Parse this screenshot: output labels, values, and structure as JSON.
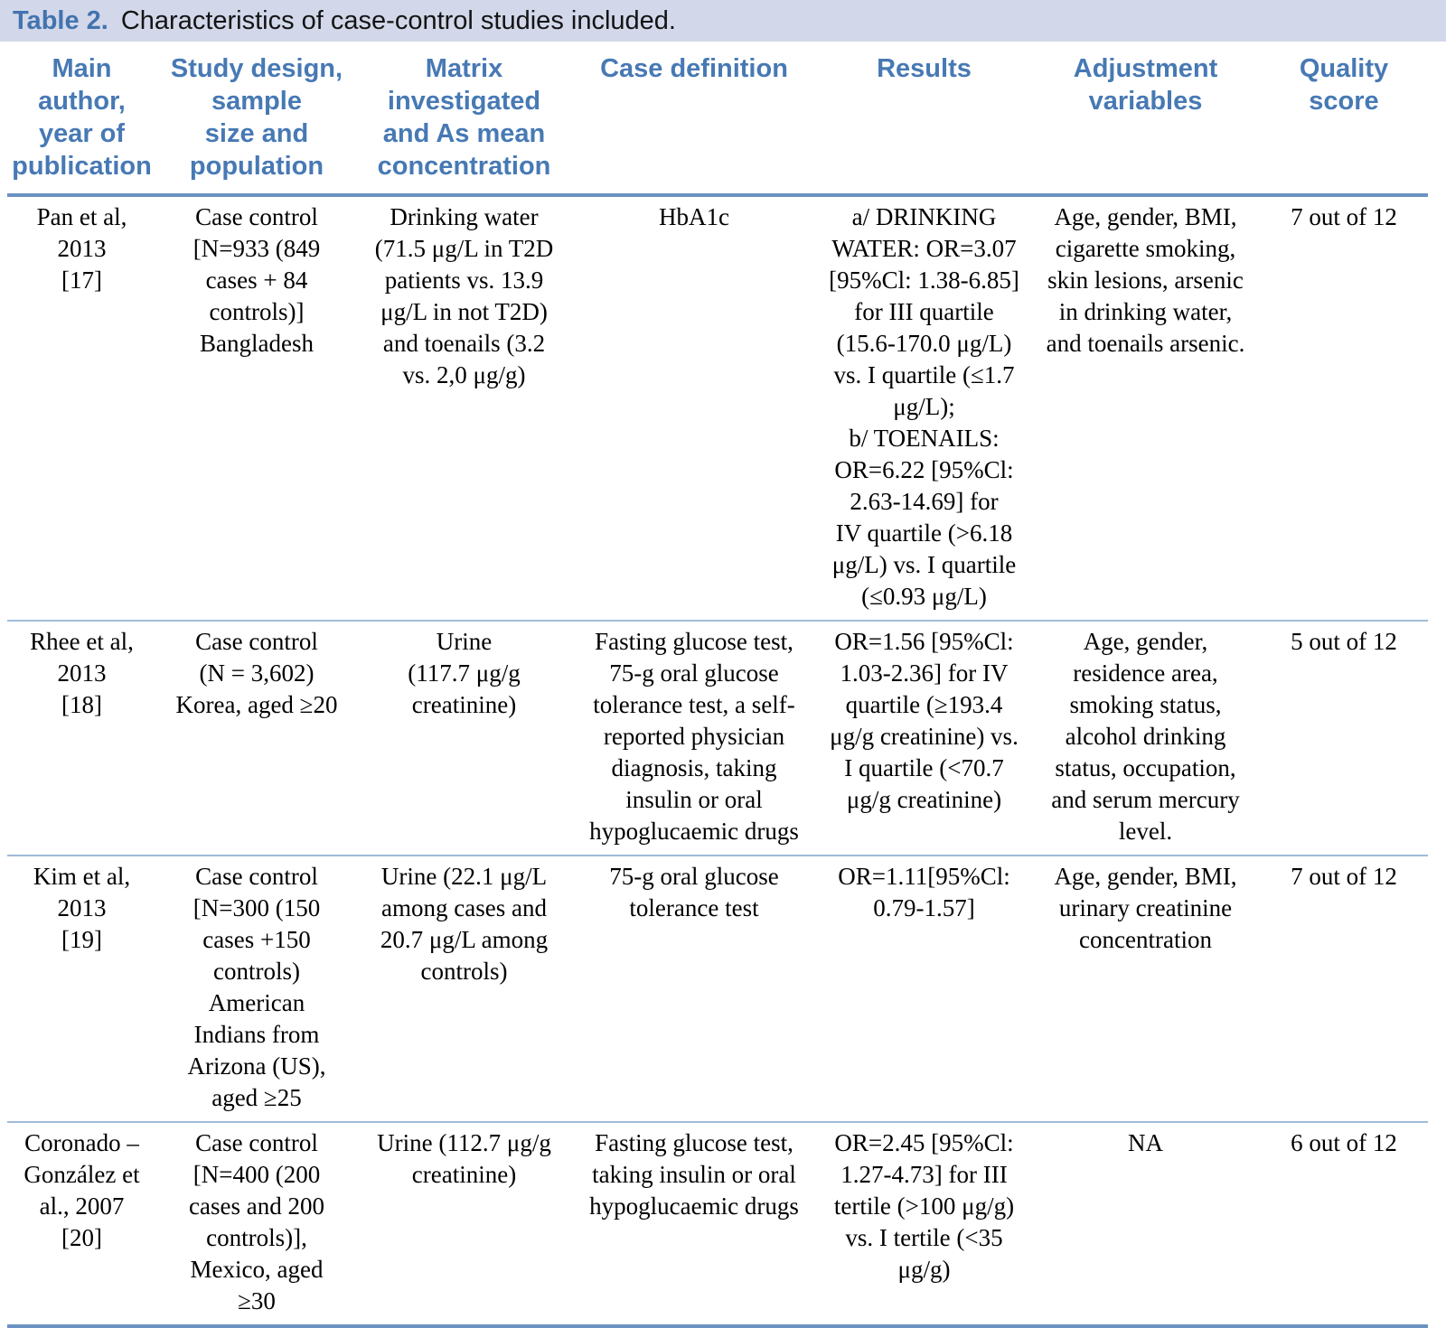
{
  "title": {
    "label": "Table 2.",
    "text": "Characteristics of case-control studies included."
  },
  "columns": [
    "Main\nauthor,\nyear of\npublication",
    "Study design,\nsample\nsize and\npopulation",
    "Matrix\ninvestigated\nand As mean\nconcentration",
    "Case definition",
    "Results",
    "Adjustment\nvariables",
    "Quality\nscore"
  ],
  "rows": [
    {
      "author": "Pan et al,\n2013\n[17]",
      "design": "Case control\n[N=933 (849\ncases + 84\ncontrols)]\nBangladesh",
      "matrix": "Drinking water\n(71.5 μg/L in T2D\npatients vs. 13.9\nμg/L in not T2D)\nand toenails (3.2\nvs. 2,0 μg/g)",
      "case_definition": "HbA1c",
      "results": "a/ DRINKING\nWATER: OR=3.07\n[95%Cl: 1.38-6.85]\nfor III quartile\n(15.6-170.0 μg/L)\nvs. I quartile (≤1.7\nμg/L);\nb/ TOENAILS:\nOR=6.22 [95%Cl:\n2.63-14.69] for\nIV quartile (>6.18\nμg/L) vs. I quartile\n(≤0.93 μg/L)",
      "adjustment": "Age, gender, BMI,\ncigarette smoking,\nskin lesions, arsenic\nin drinking water,\nand toenails arsenic.",
      "quality": "7 out of 12"
    },
    {
      "author": "Rhee et al,\n2013\n[18]",
      "design": "Case control\n(N = 3,602)\nKorea, aged ≥20",
      "matrix": "Urine\n(117.7 μg/g\ncreatinine)",
      "case_definition": "Fasting glucose test,\n75-g oral glucose\ntolerance test, a self-\nreported physician\ndiagnosis, taking\ninsulin or oral\nhypoglucaemic drugs",
      "results": "OR=1.56 [95%Cl:\n1.03-2.36] for IV\nquartile (≥193.4\nμg/g creatinine) vs.\nI quartile (<70.7\nμg/g creatinine)",
      "adjustment": "Age, gender,\nresidence area,\nsmoking status,\nalcohol drinking\nstatus, occupation,\nand serum mercury\nlevel.",
      "quality": "5 out of 12"
    },
    {
      "author": "Kim et al,\n2013\n[19]",
      "design": "Case control\n[N=300 (150\ncases +150\ncontrols)\nAmerican\nIndians from\nArizona (US),\naged ≥25",
      "matrix": "Urine (22.1 μg/L\namong cases and\n20.7 μg/L among\ncontrols)",
      "case_definition": "75-g oral glucose\ntolerance test",
      "results": "OR=1.11[95%Cl:\n0.79-1.57]",
      "adjustment": "Age, gender, BMI,\nurinary creatinine\nconcentration",
      "quality": "7 out of 12"
    },
    {
      "author": "Coronado –\nGonzález et\nal., 2007\n[20]",
      "design": "Case control\n[N=400 (200\ncases and 200\ncontrols)],\nMexico, aged\n≥30",
      "matrix": "Urine (112.7 μg/g\ncreatinine)",
      "case_definition": "Fasting glucose test,\ntaking insulin or oral\nhypoglucaemic drugs",
      "results": "OR=2.45 [95%Cl:\n1.27-4.73] for III\ntertile (>100 μg/g)\nvs. I tertile (<35\nμg/g)",
      "adjustment": "NA",
      "quality": "6 out of 12"
    }
  ],
  "colors": {
    "caption_bar_background": "#d2d8ea",
    "caption_label_blue": "#4273ae",
    "header_text_blue": "#4779b4",
    "thick_rule_blue": "#6b92c2",
    "thin_rule_blue": "#9fbbd9",
    "body_text": "#000000"
  }
}
